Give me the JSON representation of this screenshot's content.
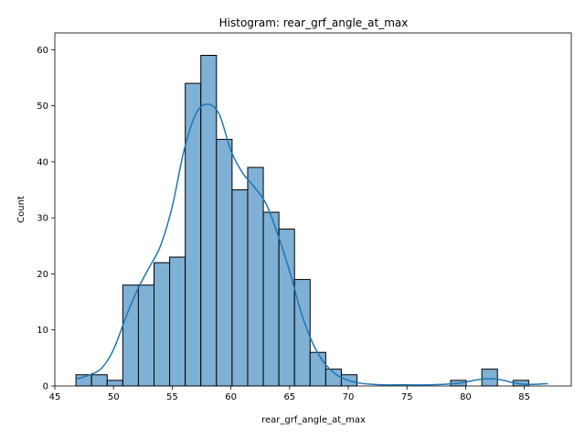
{
  "chart_data": {
    "type": "bar",
    "title": "Histogram: rear_grf_angle_at_max",
    "xlabel": "rear_grf_angle_at_max",
    "ylabel": "Count",
    "xlim": [
      45.0,
      89.0
    ],
    "ylim": [
      0,
      63
    ],
    "xticks": [
      45,
      50,
      55,
      60,
      65,
      70,
      75,
      80,
      85
    ],
    "yticks": [
      0,
      10,
      20,
      30,
      40,
      50,
      60
    ],
    "bin_start": 46.8,
    "bin_width": 1.33,
    "counts": [
      2,
      2,
      1,
      18,
      18,
      22,
      23,
      54,
      59,
      44,
      35,
      39,
      31,
      28,
      19,
      6,
      3,
      2,
      0,
      0,
      0,
      0,
      0,
      0,
      1,
      0,
      3,
      0,
      1
    ],
    "kde_x": [
      46.8,
      48,
      49,
      50,
      51,
      52,
      53,
      54,
      55,
      56,
      57,
      58,
      59,
      60,
      61,
      62,
      63,
      64,
      65,
      66,
      67,
      68,
      69,
      70,
      71,
      72,
      73,
      75,
      77,
      79,
      80,
      81,
      82,
      83,
      84,
      85,
      86,
      87
    ],
    "kde_y": [
      1.2,
      2.0,
      3.2,
      6.5,
      12,
      17,
      21,
      25,
      32,
      42,
      48.5,
      50.3,
      48.5,
      42,
      38,
      35.5,
      32.5,
      27,
      20.5,
      13,
      7.5,
      4,
      2,
      1,
      0.5,
      0.3,
      0.2,
      0.2,
      0.2,
      0.4,
      0.7,
      1.1,
      1.3,
      1.1,
      0.6,
      0.3,
      0.3,
      0.4
    ],
    "bar_color": "#7fb0d5",
    "kde_color": "#1f77b4",
    "grid": false,
    "legend": "none"
  }
}
